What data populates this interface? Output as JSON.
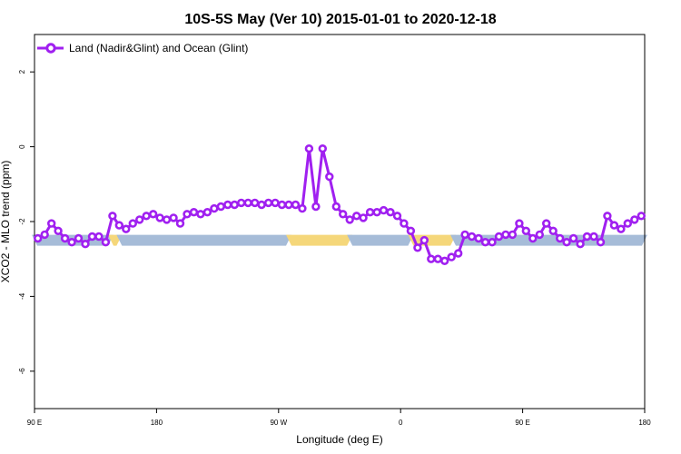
{
  "chart_data": {
    "type": "line",
    "title": "10S-5S May (Ver 10)   2015-01-01 to 2020-12-18",
    "xlabel": "Longitude (deg E)",
    "ylabel": "XCO2 - MLO trend (ppm)",
    "xlim": [
      90,
      450
    ],
    "ylim": [
      -7,
      3
    ],
    "x_ticks": [
      {
        "value": 90,
        "label": "90 E"
      },
      {
        "value": 162,
        "label": "180"
      },
      {
        "value": 234,
        "label": "90 W"
      },
      {
        "value": 306,
        "label": "0"
      },
      {
        "value": 378,
        "label": "90 E"
      },
      {
        "value": 450,
        "label": "180"
      }
    ],
    "y_ticks": [
      {
        "value": 2,
        "label": "2"
      },
      {
        "value": 0,
        "label": "0"
      },
      {
        "value": -2,
        "label": "-2"
      },
      {
        "value": -4,
        "label": "-4"
      },
      {
        "value": -6,
        "label": "-6"
      }
    ],
    "grid": false,
    "legend_position": "top-left",
    "series_color": "#a020f0",
    "series": [
      {
        "name": "Land (Nadir&Glint) and Ocean (Glint)",
        "x": [
          92,
          96,
          100,
          104,
          108,
          112,
          116,
          120,
          124,
          128,
          132,
          136,
          140,
          144,
          148,
          152,
          156,
          160,
          164,
          168,
          172,
          176,
          180,
          184,
          188,
          192,
          196,
          200,
          204,
          208,
          212,
          216,
          220,
          224,
          228,
          232,
          236,
          240,
          244,
          248,
          252,
          256,
          260,
          264,
          268,
          272,
          276,
          280,
          284,
          288,
          292,
          296,
          300,
          304,
          308,
          312,
          316,
          320,
          324,
          328,
          332,
          336,
          340,
          344,
          348,
          352,
          356,
          360,
          364,
          368,
          372,
          376,
          380,
          384,
          388,
          392,
          396,
          400,
          404,
          408,
          412,
          416,
          420,
          424,
          428,
          432,
          436,
          440,
          444,
          448
        ],
        "y": [
          -2.45,
          -2.35,
          -2.05,
          -2.25,
          -2.45,
          -2.55,
          -2.45,
          -2.6,
          -2.4,
          -2.4,
          -2.55,
          -1.85,
          -2.1,
          -2.2,
          -2.05,
          -1.95,
          -1.85,
          -1.8,
          -1.9,
          -1.95,
          -1.9,
          -2.05,
          -1.8,
          -1.75,
          -1.8,
          -1.75,
          -1.65,
          -1.6,
          -1.55,
          -1.55,
          -1.5,
          -1.5,
          -1.5,
          -1.55,
          -1.5,
          -1.5,
          -1.55,
          -1.55,
          -1.55,
          -1.65,
          -0.05,
          -1.6,
          -0.05,
          -0.8,
          -1.6,
          -1.8,
          -1.95,
          -1.85,
          -1.9,
          -1.75,
          -1.75,
          -1.7,
          -1.75,
          -1.85,
          -2.05,
          -2.25,
          -2.7,
          -2.5,
          -3.0,
          -3.0,
          -3.05,
          -2.95,
          -2.85,
          -2.35,
          -2.4,
          -2.45,
          -2.55,
          -2.55,
          -2.4,
          -2.35,
          -2.35,
          -2.05,
          -2.25,
          -2.45,
          -2.35,
          -2.05,
          -2.25,
          -2.45,
          -2.55,
          -2.45,
          -2.6,
          -2.4,
          -2.4,
          -2.55,
          -1.85,
          -2.1,
          -2.2,
          -2.05,
          -1.95,
          -1.85
        ]
      }
    ],
    "surface_bar": {
      "y": -2.5,
      "land_color": "#f5d77a",
      "ocean_color": "#a6bcd8",
      "segments": [
        {
          "type": "ocean",
          "x0": 90,
          "x1": 135
        },
        {
          "type": "land",
          "x0": 135,
          "x1": 140
        },
        {
          "type": "ocean",
          "x0": 140,
          "x1": 240
        },
        {
          "type": "land",
          "x0": 240,
          "x1": 276
        },
        {
          "type": "ocean",
          "x0": 276,
          "x1": 312
        },
        {
          "type": "land",
          "x0": 312,
          "x1": 337
        },
        {
          "type": "ocean",
          "x0": 337,
          "x1": 450
        }
      ]
    }
  }
}
